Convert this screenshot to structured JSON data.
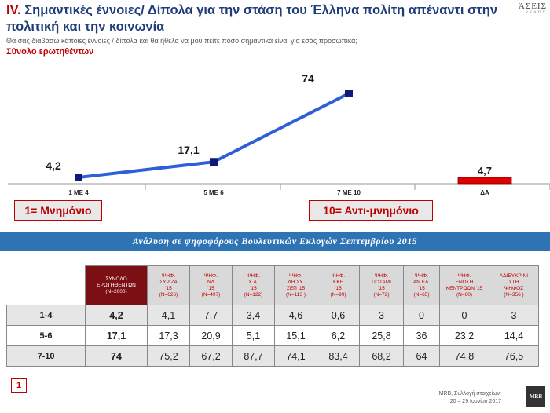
{
  "header": {
    "roman": "IV.",
    "title": "Σημαντικές έννοιες/ Δίπολα για την στάση του Έλληνα πολίτη απέναντι στην πολιτική και την κοινωνία",
    "subtitle": "Θα σας διαβάσω κάποιες έννοιες / δίπολα και θα ήθελα να μου πείτε πόσο σημαντικά είναι για εσάς προσωπικά;",
    "base": "Σύνολο ερωτηθέντων"
  },
  "logo": {
    "line1": "ΆΣΕΙΣ",
    "line2": "READY"
  },
  "chart_data": {
    "type": "line",
    "categories": [
      "1 ΜΕ 4",
      "5 ΜΕ 6",
      "7 ΜΕ 10"
    ],
    "values": [
      4.2,
      17.1,
      74
    ],
    "value_labels": [
      "4,2",
      "17,1",
      "74"
    ],
    "extra_bar": {
      "category": "ΔΑ",
      "value": 4.7,
      "label": "4,7"
    },
    "line_color": "#2f5fd8",
    "marker_color": "#0d1a7a",
    "bar_color": "#e00000",
    "legend": "none",
    "grid": false
  },
  "callouts": {
    "left": "1= Μνημόνιο",
    "right": "10= Αντι-μνημόνιο"
  },
  "analysis_band": "Ανάλυση σε ψηφοφόρους Βουλευτικών Εκλογών Σεπτεμβρίου 2015",
  "table": {
    "total_header": [
      "ΣΥΝΟΛΟ",
      "ΕΡΩΤΗΘΕΝΤΩΝ",
      "(N=2000)"
    ],
    "columns": [
      [
        "ΨΗΦ.",
        "ΣΥΡΙΖΑ",
        "'15",
        "(N=626)"
      ],
      [
        "ΨΗΦ.",
        "ΝΔ",
        "'15",
        "(N=497)"
      ],
      [
        "ΨΗΦ.",
        "Χ.Α.",
        "'15",
        "(N=122)"
      ],
      [
        "ΨΗΦ.",
        "ΔΗ.ΣΥ.",
        "ΣΕΠ '15",
        "(N=113 )"
      ],
      [
        "ΨΗΦ.",
        "ΚΚΕ",
        "'15",
        "(N=99)"
      ],
      [
        "ΨΗΦ.",
        "ΠΟΤΑΜΙ",
        "'15",
        "(N=72)"
      ],
      [
        "ΨΗΦ.",
        "ΑΝ.ΕΛ.",
        "'15",
        "(N=65)"
      ],
      [
        "ΨΗΦ.",
        "ΕΝΩΣΗ",
        "ΚΕΝΤΡΩΩΝ '15",
        "(N=60)"
      ],
      [
        "ΑΔΙΕΥΚΡΙΝΙ",
        "ΣΤΗ",
        "ΨΗΦΟΣ",
        "(N=356 )"
      ]
    ],
    "rows": [
      {
        "label": "1-4",
        "total": "4,2",
        "values": [
          "4,1",
          "7,7",
          "3,4",
          "4,6",
          "0,6",
          "3",
          "0",
          "0",
          "3"
        ]
      },
      {
        "label": "5-6",
        "total": "17,1",
        "values": [
          "17,3",
          "20,9",
          "5,1",
          "15,1",
          "6,2",
          "25,8",
          "36",
          "23,2",
          "14,4"
        ]
      },
      {
        "label": "7-10",
        "total": "74",
        "values": [
          "75,2",
          "67,2",
          "87,7",
          "74,1",
          "83,4",
          "68,2",
          "64",
          "74,8",
          "76,5"
        ]
      }
    ]
  },
  "footer": {
    "page": "1",
    "source_line1": "MRB, Συλλογή στοιχείων:",
    "source_line2": "20 – 29 Ιουνίου 2017",
    "mrb": "MRB"
  }
}
